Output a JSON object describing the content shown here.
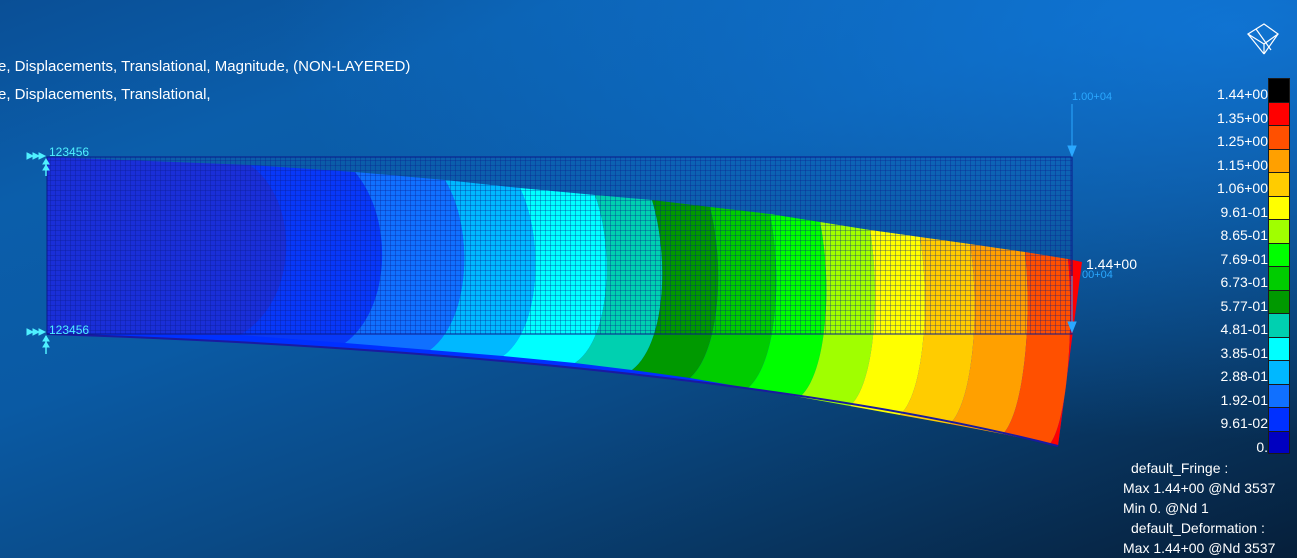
{
  "title": {
    "line1": "e, Displacements, Translational, Magnitude, (NON-LAYERED)",
    "line2": "e, Displacements, Translational,"
  },
  "model_labels": {
    "constraint_top": "123456",
    "constraint_bottom": "123456",
    "load_top": "1.00+04",
    "load_right": "00+04",
    "max_marker": "1.44+00"
  },
  "legend": {
    "colors": [
      "#000000",
      "#ff0000",
      "#ff5000",
      "#ffa000",
      "#ffcc00",
      "#ffff00",
      "#a0ff00",
      "#00ff00",
      "#00cc00",
      "#009900",
      "#00d0b0",
      "#00ffff",
      "#00b8ff",
      "#1070ff",
      "#0030ff",
      "#0000c0"
    ],
    "labels": [
      "1.44+00",
      "1.35+00",
      "1.25+00",
      "1.15+00",
      "1.06+00",
      "9.61-01",
      "8.65-01",
      "7.69-01",
      "6.73-01",
      "5.77-01",
      "4.81-01",
      "3.85-01",
      "2.88-01",
      "1.92-01",
      "9.61-02",
      "0."
    ]
  },
  "info": {
    "fringe_title": "default_Fringe :",
    "fringe_max": "Max 1.44+00 @Nd 3537",
    "fringe_min": "Min  0. @Nd 1",
    "deformation_title": "default_Deformation :",
    "deformation_max": "Max 1.44+00 @Nd 3537"
  },
  "icons": {
    "view_cube": "view-orientation-icon",
    "constraint": "constraint-arrows-icon",
    "load": "load-arrow-icon"
  }
}
